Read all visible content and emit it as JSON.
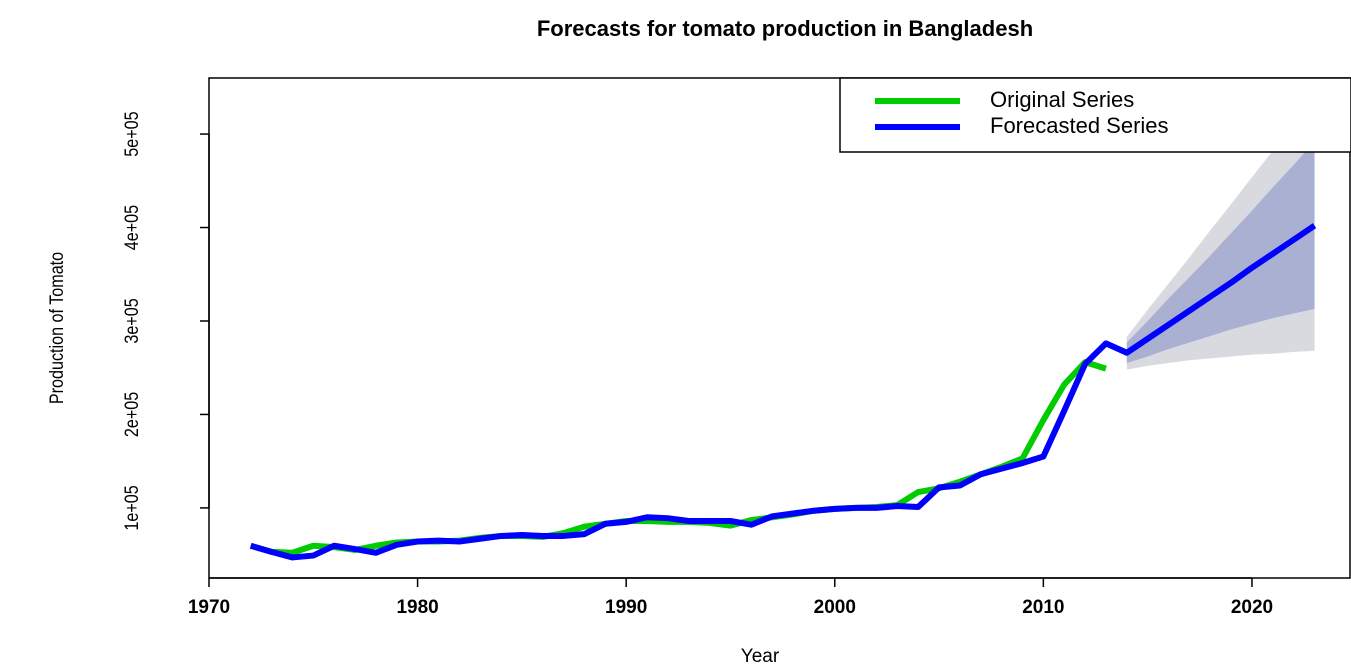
{
  "chart_data": {
    "type": "line",
    "title": "Forecasts for tomato production in Bangladesh",
    "xlabel": "Year",
    "ylabel": "Production of Tomato",
    "x": [
      1972,
      1973,
      1974,
      1975,
      1976,
      1977,
      1978,
      1979,
      1980,
      1981,
      1982,
      1983,
      1984,
      1985,
      1986,
      1987,
      1988,
      1989,
      1990,
      1991,
      1992,
      1993,
      1994,
      1995,
      1996,
      1997,
      1998,
      1999,
      2000,
      2001,
      2002,
      2003,
      2004,
      2005,
      2006,
      2007,
      2008,
      2009,
      2010,
      2011,
      2012,
      2013,
      2014,
      2015,
      2016,
      2017,
      2018,
      2019,
      2020,
      2021,
      2022,
      2023
    ],
    "series": [
      {
        "name": "Original Series",
        "color": "#00cc00",
        "values": [
          59500,
          53000,
          52000,
          59500,
          58000,
          55000,
          59500,
          63000,
          64000,
          64000,
          65000,
          68000,
          70000,
          70000,
          69000,
          73000,
          80000,
          83000,
          86000,
          86000,
          85000,
          85000,
          84000,
          81000,
          87000,
          90000,
          93000,
          97000,
          99000,
          100000,
          101000,
          103000,
          117000,
          121000,
          128000,
          136000,
          144000,
          153000,
          194000,
          232000,
          256000,
          249000,
          null,
          null,
          null,
          null,
          null,
          null,
          null,
          null,
          null,
          null
        ]
      },
      {
        "name": "Forecasted Series",
        "color": "#0000ff",
        "values": [
          59500,
          53000,
          47000,
          49000,
          59500,
          56000,
          52000,
          60500,
          64000,
          65000,
          64000,
          67000,
          70000,
          71000,
          70000,
          70000,
          72000,
          83000,
          85000,
          90000,
          89000,
          86000,
          86000,
          86000,
          82000,
          91000,
          94000,
          97000,
          99000,
          100000,
          100000,
          102000,
          101000,
          122000,
          124000,
          136000,
          142000,
          148000,
          155000,
          204000,
          254000,
          276000,
          266000,
          281000,
          296000,
          311000,
          326000,
          341000,
          357000,
          372000,
          387000,
          402000
        ]
      }
    ],
    "band_x": [
      2014,
      2015,
      2016,
      2017,
      2018,
      2019,
      2020,
      2021,
      2022,
      2023
    ],
    "bands": [
      {
        "color": "#d9d9e0",
        "lower": [
          248000,
          252000,
          255000,
          258000,
          260000,
          262000,
          264000,
          265000,
          267000,
          268000
        ],
        "upper": [
          283000,
          312000,
          340000,
          368000,
          397000,
          425000,
          454000,
          482000,
          511000,
          540000
        ]
      },
      {
        "color": "#aab0d2",
        "lower": [
          255000,
          262000,
          270000,
          277000,
          284000,
          291000,
          297000,
          303000,
          308000,
          313000
        ],
        "upper": [
          277000,
          300000,
          324000,
          347000,
          370000,
          394000,
          418000,
          443000,
          467000,
          492000
        ]
      }
    ],
    "xlim": [
      1970,
      2024.7
    ],
    "ylim": [
      25000,
      560000
    ],
    "xticks": [
      1970,
      1980,
      1990,
      2000,
      2010,
      2020
    ],
    "yticks": [
      {
        "value": 100000,
        "label": "1e+05"
      },
      {
        "value": 200000,
        "label": "2e+05"
      },
      {
        "value": 300000,
        "label": "3e+05"
      },
      {
        "value": 400000,
        "label": "4e+05"
      },
      {
        "value": 500000,
        "label": "5e+05"
      }
    ],
    "legend": "topright"
  }
}
